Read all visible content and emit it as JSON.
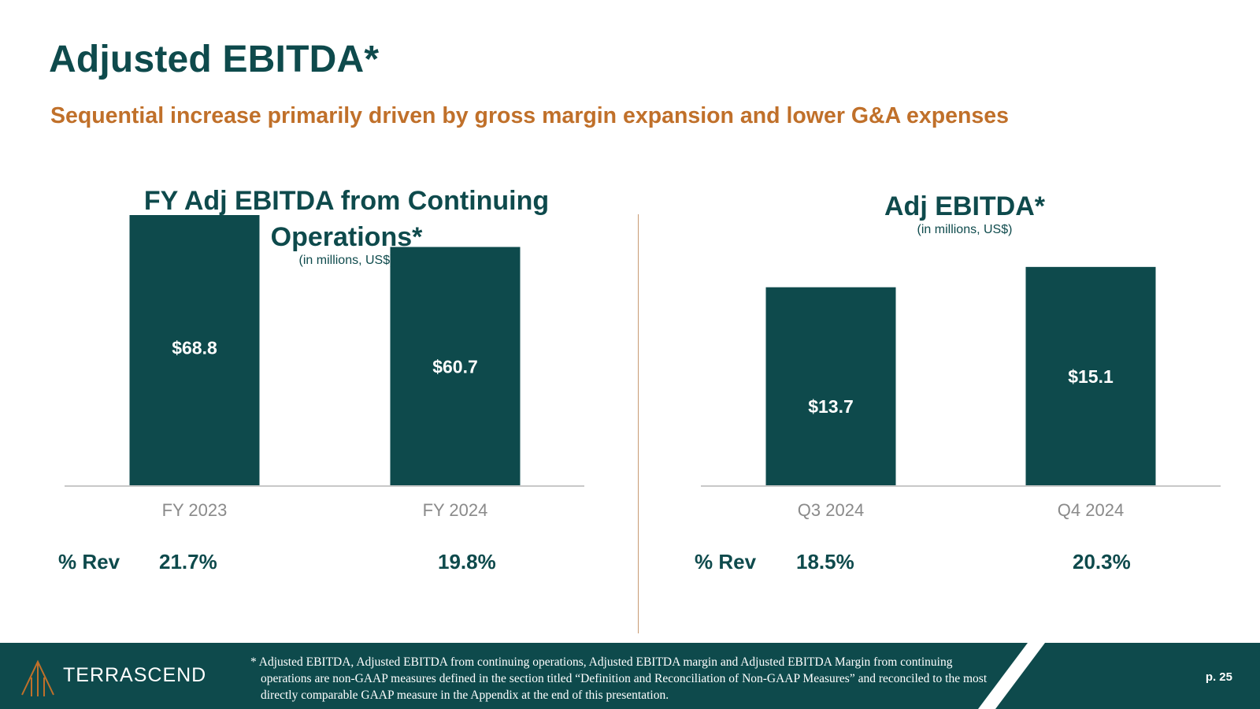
{
  "slide": {
    "title": "Adjusted EBITDA*",
    "subtitle": "Sequential increase primarily driven by gross margin expansion and lower G&A expenses",
    "page_number": "p. 25"
  },
  "chart_data": [
    {
      "type": "bar",
      "title": "FY Adj EBITDA from Continuing Operations*",
      "subtitle": "(in millions, US$)",
      "categories": [
        "FY 2023",
        "FY 2024"
      ],
      "values": [
        68.8,
        60.7
      ],
      "value_labels": [
        "$68.8",
        "$60.7"
      ],
      "ylim": [
        0,
        70
      ],
      "grid": false,
      "pct_rev_label": "% Rev",
      "pct_rev": [
        "21.7%",
        "19.8%"
      ]
    },
    {
      "type": "bar",
      "title": "Adj EBITDA*",
      "subtitle": "(in millions, US$)",
      "categories": [
        "Q3 2024",
        "Q4 2024"
      ],
      "values": [
        13.7,
        15.1
      ],
      "value_labels": [
        "$13.7",
        "$15.1"
      ],
      "ylim": [
        0,
        19
      ],
      "grid": false,
      "pct_rev_label": "% Rev",
      "pct_rev": [
        "18.5%",
        "20.3%"
      ]
    }
  ],
  "footer": {
    "footnote": "* Adjusted EBITDA, Adjusted EBITDA from continuing operations, Adjusted EBITDA margin and Adjusted EBITDA Margin from continuing operations are non-GAAP measures defined in the section titled “Definition and Reconciliation of Non-GAAP Measures” and reconciled to the most directly comparable GAAP measure in the Appendix at the end of this presentation.",
    "logo_text": "TERRASCEND"
  },
  "colors": {
    "primary": "#0e4a4c",
    "accent": "#c0702a",
    "divider": "#c99a73",
    "axis": "#c8c8c8",
    "category_text": "#8a8a8a"
  },
  "icons": {
    "logo": "terrascend-logo-icon"
  }
}
